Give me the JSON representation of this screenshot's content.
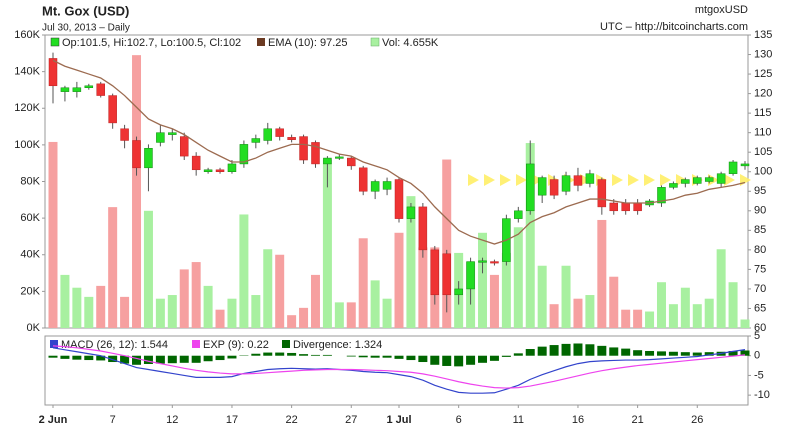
{
  "chart_data": {
    "type": "candlestick",
    "title": "Mt. Gox (USD)",
    "subtitle": "Jul 30, 2013 – Daily",
    "symbol": "mtgoxUSD",
    "source": "UTC – http://bitcoincharts.com",
    "legend": {
      "ohlc": "Op:101.5, Hi:102.7, Lo:100.5, Cl:102",
      "ema": "EMA (10): 97.25",
      "volume": "Vol: 4.655K"
    },
    "categories": [
      "2 Jun",
      null,
      null,
      null,
      null,
      "7",
      null,
      null,
      null,
      null,
      "12",
      null,
      null,
      null,
      null,
      "17",
      null,
      null,
      null,
      null,
      "22",
      null,
      null,
      null,
      null,
      "27",
      null,
      null,
      null,
      "1 Jul",
      null,
      null,
      null,
      null,
      "6",
      null,
      null,
      null,
      null,
      "11",
      null,
      null,
      null,
      null,
      "16",
      null,
      null,
      null,
      null,
      "21",
      null,
      null,
      null,
      null,
      "26",
      null,
      null,
      null,
      null
    ],
    "up_color": "#22dd22",
    "down_color": "#ee3333",
    "open": [
      129,
      120.5,
      120.5,
      121.5,
      122.5,
      119.5,
      111,
      108,
      101,
      107.5,
      109.5,
      109,
      104,
      100,
      100.5,
      100,
      102,
      107.5,
      108,
      111,
      108.8,
      109,
      107.5,
      102,
      103.5,
      103.5,
      101,
      95,
      95.5,
      98,
      88,
      91,
      80,
      79,
      68.5,
      70,
      76.8,
      77,
      77,
      88,
      90,
      94,
      98,
      95,
      99,
      97,
      98,
      92,
      92,
      92,
      91.5,
      92,
      96,
      97,
      97,
      97.5,
      97,
      99.5,
      101.5
    ],
    "high": [
      130.5,
      122,
      123,
      122.5,
      123,
      120,
      112,
      109,
      107,
      112,
      111,
      110,
      105,
      101,
      101,
      103,
      108,
      109.5,
      112.5,
      111.5,
      109.5,
      109.5,
      108,
      104,
      104.5,
      104,
      101.5,
      98,
      98.5,
      98.5,
      92,
      92,
      81,
      80,
      72,
      78,
      78,
      77.5,
      89,
      91,
      108,
      99,
      99,
      100,
      101,
      100.5,
      98.5,
      93,
      93,
      93,
      93,
      96.5,
      97.5,
      98.5,
      99,
      99,
      100,
      103,
      102.7
    ],
    "low": [
      117.5,
      118,
      119,
      121,
      119,
      111,
      106,
      99,
      95,
      106.5,
      108,
      103,
      99,
      99.5,
      99.5,
      99.5,
      101,
      106,
      107,
      108,
      107.5,
      102,
      101,
      96,
      103,
      100.5,
      94,
      93,
      94,
      87,
      87,
      78,
      66,
      64,
      66,
      66,
      74,
      76,
      76,
      87,
      89,
      92,
      93,
      94,
      95,
      96,
      89,
      89,
      89,
      89,
      91,
      91,
      95.5,
      96,
      96.5,
      97,
      96,
      99,
      100.5
    ],
    "close": [
      122,
      121.5,
      121.5,
      122,
      119.5,
      112.5,
      108,
      101,
      106,
      110,
      110,
      104,
      100.5,
      100.5,
      100,
      102,
      107,
      108.5,
      111,
      109,
      108.2,
      103,
      102,
      103.5,
      103.8,
      101.5,
      95,
      97.5,
      97.5,
      88,
      91,
      80,
      68.5,
      68.5,
      70,
      77,
      77.2,
      76.8,
      88,
      90,
      102,
      98.5,
      94,
      99,
      96.5,
      99.5,
      91,
      90,
      90,
      90,
      92.5,
      96,
      97,
      98,
      98.5,
      98.5,
      99.5,
      102.5,
      102
    ],
    "ema": {
      "name": "EMA (10)",
      "color": "#9c6b50",
      "values": [
        128.5,
        127,
        126,
        125,
        124,
        122,
        119.5,
        116.5,
        113.5,
        112,
        111,
        109.5,
        107.5,
        105.5,
        104,
        102.5,
        102.5,
        103.5,
        105,
        106,
        107,
        107,
        106.5,
        105.5,
        104.5,
        104,
        102.5,
        101.5,
        100.5,
        98.5,
        97,
        94.5,
        91,
        88,
        85,
        83.5,
        82.5,
        81.5,
        82.5,
        84,
        87,
        88.5,
        89.5,
        91,
        92,
        93,
        93,
        92.5,
        92,
        92,
        92,
        92.5,
        93,
        94,
        94.5,
        95.5,
        96,
        96.5,
        97.25
      ]
    },
    "volume": {
      "name": "Vol",
      "up_color": "#a8f0a0",
      "down_color": "#f6a0a0",
      "values": [
        101600,
        29000,
        22000,
        17000,
        23000,
        66000,
        17000,
        149000,
        64000,
        16000,
        18000,
        32000,
        36000,
        23000,
        10000,
        16000,
        62000,
        18000,
        43000,
        40000,
        7000,
        11000,
        29000,
        92000,
        14000,
        14000,
        49000,
        26000,
        16000,
        52000,
        72000,
        44000,
        44000,
        92000,
        41000,
        36000,
        52000,
        29000,
        41000,
        55000,
        101000,
        34000,
        13000,
        34000,
        16000,
        18000,
        59000,
        28000,
        10000,
        10000,
        9000,
        25000,
        13000,
        22000,
        13000,
        16000,
        43000,
        25000,
        4655
      ]
    },
    "ylim": [
      0,
      160000
    ],
    "yticks": [
      {
        "value": 0,
        "label": "0K"
      },
      {
        "value": 20000,
        "label": "20K"
      },
      {
        "value": 40000,
        "label": "40K"
      },
      {
        "value": 60000,
        "label": "60K"
      },
      {
        "value": 80000,
        "label": "80K"
      },
      {
        "value": 100000,
        "label": "100K"
      },
      {
        "value": 120000,
        "label": "120K"
      },
      {
        "value": 140000,
        "label": "140K"
      },
      {
        "value": 160000,
        "label": "160K"
      }
    ],
    "y2lim": [
      60,
      135
    ],
    "y2ticks": [
      60,
      65,
      70,
      75,
      80,
      85,
      90,
      95,
      100,
      105,
      110,
      115,
      120,
      125,
      130,
      135
    ],
    "macd": {
      "legend": {
        "macd": "MACD (26, 12): 1.544",
        "signal": "EXP (9): 0.22",
        "divergence": "Divergence: 1.324"
      },
      "ylim": [
        -12.5,
        5
      ],
      "yticks": [
        5,
        0,
        -5,
        -10
      ],
      "series": [
        {
          "name": "MACD",
          "color": "#3344cc",
          "values": [
            2,
            1.5,
            1,
            0.5,
            0,
            -1,
            -2,
            -3,
            -3.5,
            -4,
            -4.5,
            -5,
            -5.5,
            -5.5,
            -5.5,
            -5.3,
            -4.5,
            -4,
            -3.5,
            -3.3,
            -3.2,
            -3.3,
            -3.4,
            -3.3,
            -3.5,
            -3.7,
            -4,
            -4.2,
            -4.3,
            -4.8,
            -5.3,
            -6.2,
            -7.5,
            -8.5,
            -9.3,
            -9.5,
            -9.5,
            -9.4,
            -8.5,
            -7.5,
            -6,
            -4.8,
            -3.8,
            -2.8,
            -2,
            -1.5,
            -1.3,
            -1.2,
            -1.1,
            -1.1,
            -1,
            -0.8,
            -0.6,
            -0.4,
            -0.2,
            0.2,
            0.6,
            1.1,
            1.544
          ]
        },
        {
          "name": "EXP",
          "color": "#ee44ee",
          "values": [
            2.5,
            2.3,
            2,
            1.6,
            1.2,
            0.6,
            0,
            -0.7,
            -1.4,
            -2,
            -2.6,
            -3.2,
            -3.7,
            -4.1,
            -4.4,
            -4.6,
            -4.6,
            -4.5,
            -4.3,
            -4.1,
            -3.9,
            -3.7,
            -3.6,
            -3.5,
            -3.5,
            -3.5,
            -3.6,
            -3.7,
            -3.8,
            -4,
            -4.2,
            -4.6,
            -5.2,
            -5.9,
            -6.6,
            -7.2,
            -7.7,
            -8.1,
            -8.2,
            -8.1,
            -7.7,
            -7.1,
            -6.5,
            -5.8,
            -5.1,
            -4.4,
            -3.8,
            -3.3,
            -2.9,
            -2.5,
            -2.2,
            -1.9,
            -1.6,
            -1.3,
            -1,
            -0.7,
            -0.4,
            -0.1,
            0.22
          ]
        }
      ],
      "divergence": {
        "name": "Divergence",
        "color": "#006600",
        "values": [
          -0.5,
          -0.8,
          -1,
          -1.1,
          -1.2,
          -1.6,
          -2,
          -2.3,
          -2.1,
          -2,
          -1.9,
          -1.8,
          -1.8,
          -1.4,
          -1.1,
          -0.7,
          0.1,
          0.5,
          0.8,
          0.8,
          0.7,
          0.4,
          0.2,
          0.2,
          0,
          -0.2,
          -0.4,
          -0.5,
          -0.5,
          -0.8,
          -1.1,
          -1.6,
          -2.3,
          -2.6,
          -2.7,
          -2.3,
          -1.8,
          -1.3,
          -0.3,
          0.6,
          1.7,
          2.3,
          2.7,
          3,
          3.1,
          2.9,
          2.5,
          2.1,
          1.8,
          1.4,
          1.2,
          1.1,
          1,
          0.9,
          0.8,
          0.9,
          1,
          1.2,
          1.324
        ]
      }
    }
  }
}
